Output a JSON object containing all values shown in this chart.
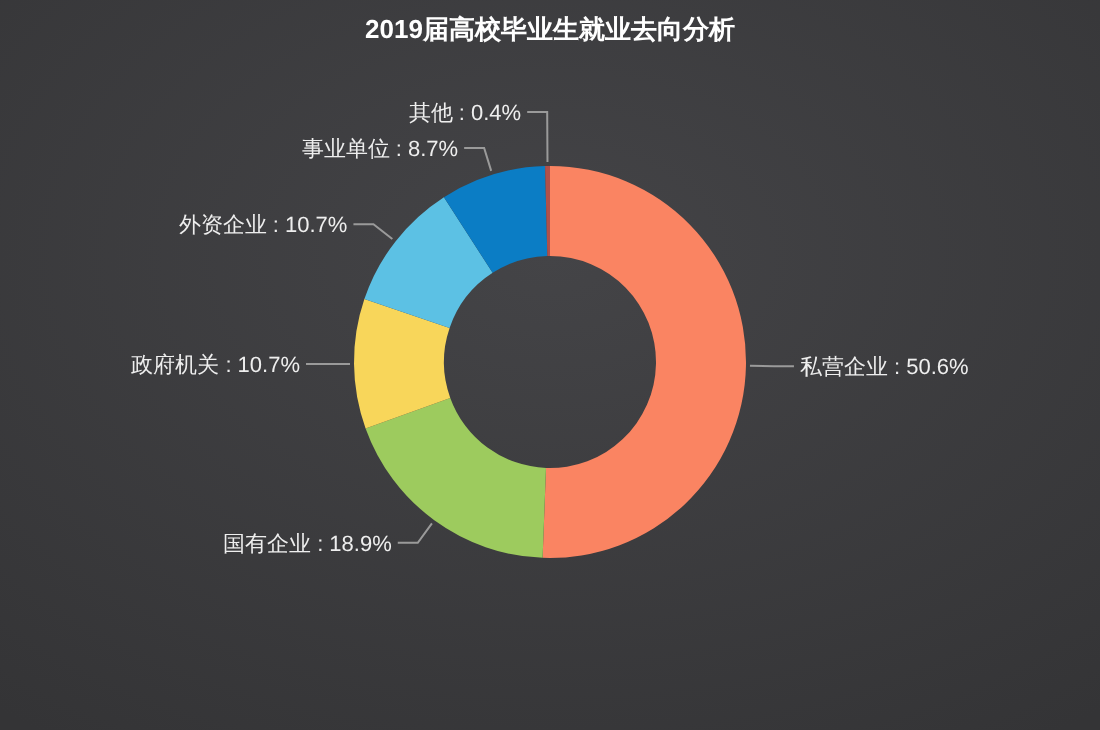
{
  "chart_data": {
    "type": "donut",
    "title": "2019届高校毕业生就业去向分析",
    "categories": [
      "私营企业",
      "国有企业",
      "政府机关",
      "外资企业",
      "事业单位",
      "其他"
    ],
    "values": [
      50.6,
      18.9,
      10.7,
      10.7,
      8.7,
      0.4
    ],
    "value_labels": [
      "50.6%",
      "18.9%",
      "10.7%",
      "10.7%",
      "8.7%",
      "0.4%"
    ],
    "colors": [
      "#fa8462",
      "#9dcb5e",
      "#f8d65a",
      "#5cc1e4",
      "#0b7dc5",
      "#b0504a"
    ],
    "legend": false
  }
}
